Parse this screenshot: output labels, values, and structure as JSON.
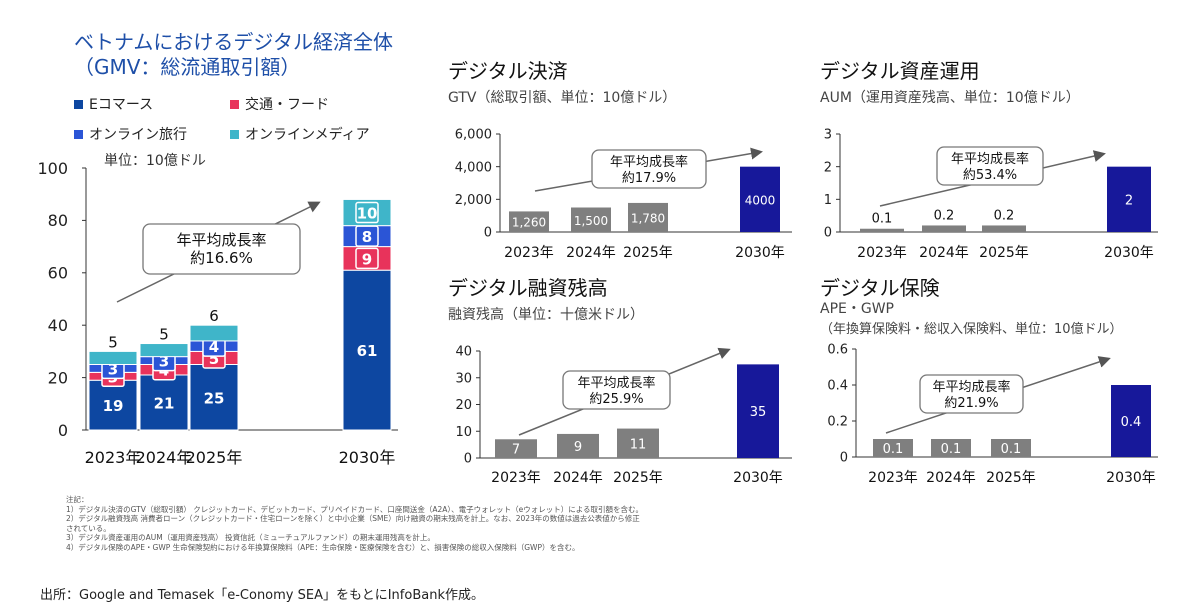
{
  "main": {
    "title_line1": "ベトナムにおけるデジタル経済全体",
    "title_line2": "（GMV：総流通取引額）",
    "unit": "単位：10億ドル",
    "legend": [
      {
        "label": "Eコマース",
        "color": "#0d47a1"
      },
      {
        "label": "交通・フード",
        "color": "#e8335b"
      },
      {
        "label": "オンライン旅行",
        "color": "#2b55d6"
      },
      {
        "label": "オンラインメディア",
        "color": "#3fb5c9"
      }
    ]
  },
  "panels": {
    "payments": {
      "title": "デジタル決済",
      "subtitle": "GTV（総取引額、単位：10億ドル）"
    },
    "lending": {
      "title": "デジタル融資残高",
      "subtitle": "融資残高（単位：十億米ドル）"
    },
    "assets": {
      "title": "デジタル資産運用",
      "subtitle": "AUM（運用資産残高、単位：10億ドル）"
    },
    "insurance": {
      "title": "デジタル保険",
      "subtitle": "APE・GWP",
      "subtitle2": "（年換算保険料・総収入保険料、単位：10億ドル）"
    }
  },
  "chart_data": [
    {
      "id": "gmv",
      "type": "bar",
      "stacked": true,
      "categories": [
        "2023年",
        "2024年",
        "2025年",
        "2030年"
      ],
      "series": [
        {
          "name": "Eコマース",
          "color": "#0d47a1",
          "values": [
            19,
            21,
            25,
            61
          ]
        },
        {
          "name": "交通・フード",
          "color": "#e8335b",
          "values": [
            3,
            4,
            5,
            9
          ]
        },
        {
          "name": "オンライン旅行",
          "color": "#2b55d6",
          "values": [
            3,
            3,
            4,
            8
          ]
        },
        {
          "name": "オンラインメディア",
          "color": "#3fb5c9",
          "values": [
            5,
            5,
            6,
            10
          ]
        }
      ],
      "ylim": [
        0,
        100
      ],
      "yticks": [
        0,
        20,
        40,
        60,
        80,
        100
      ],
      "annotation": {
        "line1": "年平均成長率",
        "line2": "約16.6%"
      }
    },
    {
      "id": "payments",
      "type": "bar",
      "categories": [
        "2023年",
        "2024年",
        "2025年",
        "2030年"
      ],
      "values": [
        1260,
        1500,
        1780,
        4000
      ],
      "value_labels": [
        "1,260",
        "1,500",
        "1,780",
        "4000"
      ],
      "ylim": [
        0,
        6000
      ],
      "yticks": [
        0,
        2000,
        4000,
        6000
      ],
      "ytick_labels": [
        "0",
        "2,000",
        "4,000",
        "6,000"
      ],
      "annotation": {
        "line1": "年平均成長率",
        "line2": "約17.9%"
      }
    },
    {
      "id": "lending",
      "type": "bar",
      "categories": [
        "2023年",
        "2024年",
        "2025年",
        "2030年"
      ],
      "values": [
        7,
        9,
        11,
        35
      ],
      "value_labels": [
        "7",
        "9",
        "11",
        "35"
      ],
      "ylim": [
        0,
        40
      ],
      "yticks": [
        0,
        10,
        20,
        30,
        40
      ],
      "ytick_labels": [
        "0",
        "10",
        "20",
        "30",
        "40"
      ],
      "annotation": {
        "line1": "年平均成長率",
        "line2": "約25.9%"
      }
    },
    {
      "id": "assets",
      "type": "bar",
      "categories": [
        "2023年",
        "2024年",
        "2025年",
        "2030年"
      ],
      "values": [
        0.1,
        0.2,
        0.2,
        2
      ],
      "value_labels": [
        "0.1",
        "0.2",
        "0.2",
        "2"
      ],
      "ylim": [
        0,
        3
      ],
      "yticks": [
        0,
        1,
        2,
        3
      ],
      "ytick_labels": [
        "0",
        "1",
        "2",
        "3"
      ],
      "annotation": {
        "line1": "年平均成長率",
        "line2": "約53.4%"
      }
    },
    {
      "id": "insurance",
      "type": "bar",
      "categories": [
        "2023年",
        "2024年",
        "2025年",
        "2030年"
      ],
      "values": [
        0.1,
        0.1,
        0.1,
        0.4
      ],
      "value_labels": [
        "0.1",
        "0.1",
        "0.1",
        "0.4"
      ],
      "ylim": [
        0,
        0.6
      ],
      "yticks": [
        0,
        0.2,
        0.4,
        0.6
      ],
      "ytick_labels": [
        "0",
        "0.2",
        "0.4",
        "0.6"
      ],
      "annotation": {
        "line1": "年平均成長率",
        "line2": "約21.9%"
      }
    }
  ],
  "colors": {
    "past_bar": "#7f7f7f",
    "future_bar": "#17189a"
  },
  "notes": [
    "注記：",
    "1）デジタル決済のGTV（総取引額） クレジットカード、デビットカード、プリペイドカード、口座間送金（A2A）、電子ウォレット（eウォレット）による取引額を含む。",
    "2）デジタル融資残高 消費者ローン（クレジットカード・住宅ローンを除く）と中小企業（SME）向け融資の期末残高を計上。なお、2023年の数値は過去公表値から修正",
    "されている。",
    "3）デジタル資産運用のAUM（運用資産残高） 投資信託（ミューチュアルファンド）の期末運用残高を計上。",
    "4）デジタル保険のAPE・GWP 生命保険契約における年換算保険料（APE：生命保険・医療保険を含む）と、損害保険の総収入保険料（GWP）を含む。"
  ],
  "source": "出所：Google and Temasek「e-Conomy SEA」をもとにInfoBank作成。"
}
